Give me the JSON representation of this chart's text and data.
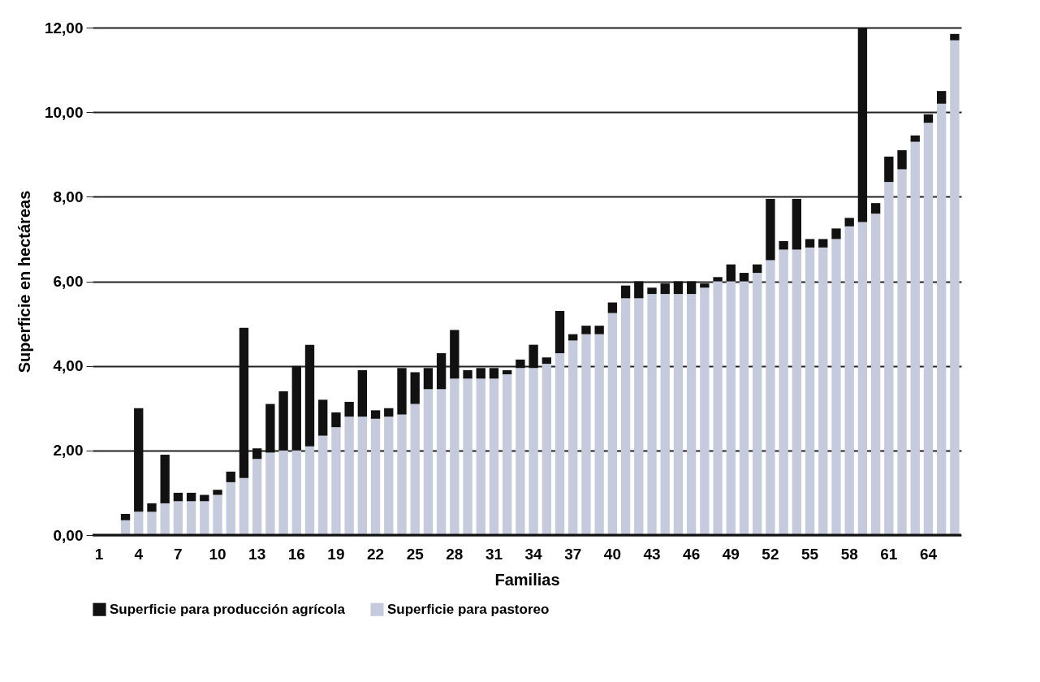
{
  "chart_data": {
    "type": "bar",
    "stacked": true,
    "xlabel": "Familias",
    "ylabel": "Superficie en hectáreas",
    "categories": [
      "1",
      null,
      null,
      "4",
      null,
      null,
      "7",
      null,
      null,
      "10",
      null,
      null,
      "13",
      null,
      null,
      "16",
      null,
      null,
      "19",
      null,
      null,
      "22",
      null,
      null,
      "25",
      null,
      null,
      "28",
      null,
      null,
      "31",
      null,
      null,
      "34",
      null,
      null,
      "37",
      null,
      null,
      "40",
      null,
      null,
      "43",
      null,
      null,
      "46",
      null,
      null,
      "49",
      null,
      null,
      "52",
      null,
      null,
      "55",
      null,
      null,
      "58",
      null,
      null,
      "61",
      null,
      null,
      "64",
      null,
      null
    ],
    "series": [
      {
        "name": "Superficie para pastoreo",
        "color": "#c5cbdc",
        "values": [
          0,
          0,
          0.35,
          0.55,
          0.55,
          0.75,
          0.8,
          0.8,
          0.8,
          0.95,
          1.25,
          1.35,
          1.8,
          1.95,
          2.0,
          2.0,
          2.1,
          2.35,
          2.55,
          2.8,
          2.8,
          2.75,
          2.8,
          2.85,
          3.1,
          3.45,
          3.45,
          3.7,
          3.7,
          3.7,
          3.7,
          3.8,
          3.95,
          3.95,
          4.05,
          4.3,
          4.6,
          4.75,
          4.75,
          5.25,
          5.6,
          5.6,
          5.7,
          5.7,
          5.7,
          5.7,
          5.85,
          6.0,
          6.0,
          6.0,
          6.2,
          6.5,
          6.75,
          6.75,
          6.8,
          6.8,
          7.0,
          7.3,
          7.4,
          7.6,
          8.35,
          8.65,
          9.3,
          9.75,
          10.2,
          11.7
        ]
      },
      {
        "name": "Superficie para producción agrícola",
        "color": "#111111",
        "values": [
          0,
          0,
          0.15,
          2.45,
          0.2,
          1.15,
          0.2,
          0.2,
          0.15,
          0.12,
          0.25,
          3.55,
          0.25,
          1.15,
          1.4,
          2.0,
          2.4,
          0.85,
          0.35,
          0.35,
          1.1,
          0.2,
          0.2,
          1.1,
          0.75,
          0.5,
          0.85,
          1.15,
          0.2,
          0.25,
          0.25,
          0.1,
          0.2,
          0.55,
          0.15,
          1.0,
          0.15,
          0.2,
          0.2,
          0.25,
          0.3,
          0.4,
          0.15,
          0.25,
          0.3,
          0.3,
          0.1,
          0.1,
          0.4,
          0.2,
          0.2,
          1.45,
          0.2,
          1.2,
          0.2,
          0.2,
          0.25,
          0.2,
          4.6,
          0.25,
          0.6,
          0.45,
          0.15,
          0.2,
          0.3,
          0.15
        ]
      }
    ],
    "ylim": [
      0,
      12
    ],
    "yticks": [
      {
        "value": 0,
        "label": "0,00"
      },
      {
        "value": 2,
        "label": "2,00"
      },
      {
        "value": 4,
        "label": "4,00"
      },
      {
        "value": 6,
        "label": "6,00"
      },
      {
        "value": 8,
        "label": "8,00"
      },
      {
        "value": 10,
        "label": "10,00"
      },
      {
        "value": 12,
        "label": "12,00"
      }
    ],
    "grid": "y",
    "legend": "bottom"
  }
}
